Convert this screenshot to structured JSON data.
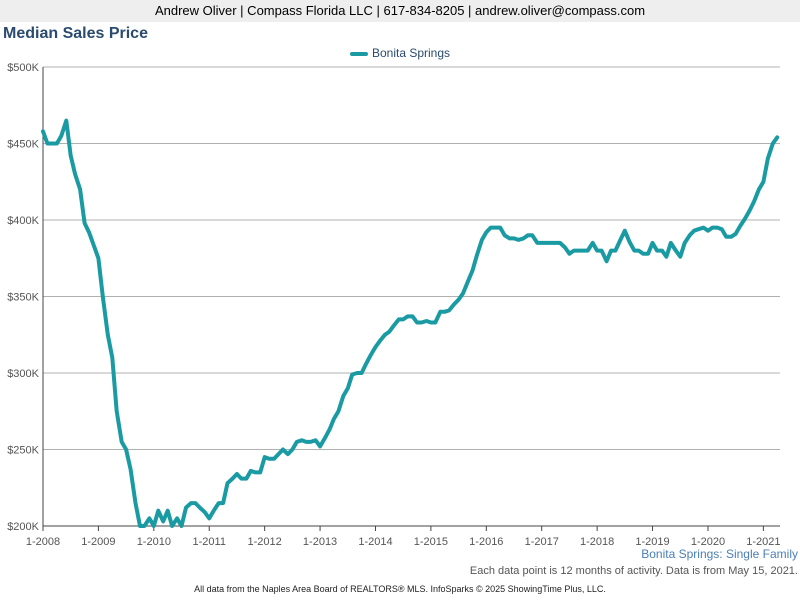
{
  "header": {
    "text": "Andrew Oliver | Compass Florida LLC | 617-834-8205 | andrew.oliver@compass.com"
  },
  "chart_data": {
    "type": "line",
    "title": "Median Sales Price",
    "subtitle": "Bonita Springs: Single Family",
    "note": "Each data point is 12 months of activity. Data is from May 15, 2021.",
    "footer": "All data from the Naples Area Board of REALTORS® MLS. InfoSparks © 2025 ShowingTime Plus, LLC.",
    "legend_position": "top-center",
    "grid": true,
    "x_ticks": [
      "1-2008",
      "1-2009",
      "1-2010",
      "1-2011",
      "1-2012",
      "1-2013",
      "1-2014",
      "1-2015",
      "1-2016",
      "1-2017",
      "1-2018",
      "1-2019",
      "1-2020",
      "1-2021"
    ],
    "y_ticks": [
      "$200K",
      "$250K",
      "$300K",
      "$350K",
      "$400K",
      "$450K",
      "$500K"
    ],
    "xlim": [
      2008.0,
      2021.3
    ],
    "ylim": [
      200000,
      500000
    ],
    "series": [
      {
        "name": "Bonita Springs",
        "color": "#1a9ba3",
        "x": [
          2008.0,
          2008.08,
          2008.17,
          2008.25,
          2008.33,
          2008.42,
          2008.5,
          2008.58,
          2008.67,
          2008.75,
          2008.83,
          2008.92,
          2009.0,
          2009.08,
          2009.17,
          2009.25,
          2009.33,
          2009.42,
          2009.5,
          2009.58,
          2009.67,
          2009.75,
          2009.83,
          2009.92,
          2010.0,
          2010.08,
          2010.17,
          2010.25,
          2010.33,
          2010.42,
          2010.5,
          2010.58,
          2010.67,
          2010.75,
          2010.83,
          2010.92,
          2011.0,
          2011.08,
          2011.17,
          2011.25,
          2011.33,
          2011.42,
          2011.5,
          2011.58,
          2011.67,
          2011.75,
          2011.83,
          2011.92,
          2012.0,
          2012.08,
          2012.17,
          2012.25,
          2012.33,
          2012.42,
          2012.5,
          2012.58,
          2012.67,
          2012.75,
          2012.83,
          2012.92,
          2013.0,
          2013.08,
          2013.17,
          2013.25,
          2013.33,
          2013.42,
          2013.5,
          2013.58,
          2013.67,
          2013.75,
          2013.83,
          2013.92,
          2014.0,
          2014.08,
          2014.17,
          2014.25,
          2014.33,
          2014.42,
          2014.5,
          2014.58,
          2014.67,
          2014.75,
          2014.83,
          2014.92,
          2015.0,
          2015.08,
          2015.17,
          2015.25,
          2015.33,
          2015.42,
          2015.5,
          2015.58,
          2015.67,
          2015.75,
          2015.83,
          2015.92,
          2016.0,
          2016.08,
          2016.17,
          2016.25,
          2016.33,
          2016.42,
          2016.5,
          2016.58,
          2016.67,
          2016.75,
          2016.83,
          2016.92,
          2017.0,
          2017.08,
          2017.17,
          2017.25,
          2017.33,
          2017.42,
          2017.5,
          2017.58,
          2017.67,
          2017.75,
          2017.83,
          2017.92,
          2018.0,
          2018.08,
          2018.17,
          2018.25,
          2018.33,
          2018.42,
          2018.5,
          2018.58,
          2018.67,
          2018.75,
          2018.83,
          2018.92,
          2019.0,
          2019.08,
          2019.17,
          2019.25,
          2019.33,
          2019.42,
          2019.5,
          2019.58,
          2019.67,
          2019.75,
          2019.83,
          2019.92,
          2020.0,
          2020.08,
          2020.17,
          2020.25,
          2020.33,
          2020.42,
          2020.5,
          2020.58,
          2020.67,
          2020.75,
          2020.83,
          2020.92,
          2021.0,
          2021.08,
          2021.17,
          2021.25
        ],
        "values": [
          458000,
          450000,
          450000,
          450000,
          455000,
          465000,
          442000,
          430000,
          420000,
          398000,
          392000,
          383000,
          375000,
          350000,
          325000,
          310000,
          275000,
          255000,
          250000,
          237000,
          215000,
          200000,
          199000,
          205000,
          198000,
          210000,
          203000,
          210000,
          200000,
          205000,
          200000,
          212000,
          215000,
          215000,
          212000,
          209000,
          205000,
          210000,
          215000,
          215000,
          228000,
          231000,
          234000,
          231000,
          231000,
          236000,
          235000,
          235000,
          245000,
          244000,
          244000,
          247000,
          250000,
          247000,
          250000,
          255000,
          256000,
          255000,
          255000,
          256000,
          252000,
          257000,
          263000,
          270000,
          275000,
          285000,
          290000,
          299000,
          300000,
          300000,
          306000,
          312000,
          317000,
          321000,
          325000,
          327000,
          331000,
          335000,
          335000,
          337000,
          337000,
          333000,
          333000,
          334000,
          333000,
          333000,
          340000,
          340000,
          341000,
          345000,
          348000,
          352000,
          360000,
          367000,
          377000,
          387000,
          392000,
          395000,
          395000,
          395000,
          390000,
          388000,
          388000,
          387000,
          388000,
          390000,
          390000,
          385000,
          385000,
          385000,
          385000,
          385000,
          385000,
          382000,
          378000,
          380000,
          380000,
          380000,
          380000,
          385000,
          380000,
          380000,
          373000,
          380000,
          380000,
          387000,
          393000,
          386000,
          380000,
          380000,
          378000,
          378000,
          385000,
          380000,
          380000,
          376000,
          385000,
          380000,
          376000,
          385000,
          390000,
          393000,
          394000,
          395000,
          393000,
          395000,
          395000,
          394000,
          389000,
          389000,
          391000,
          396000,
          401000,
          406000,
          412000,
          420000,
          425000,
          440000,
          450000,
          454000
        ]
      }
    ]
  }
}
